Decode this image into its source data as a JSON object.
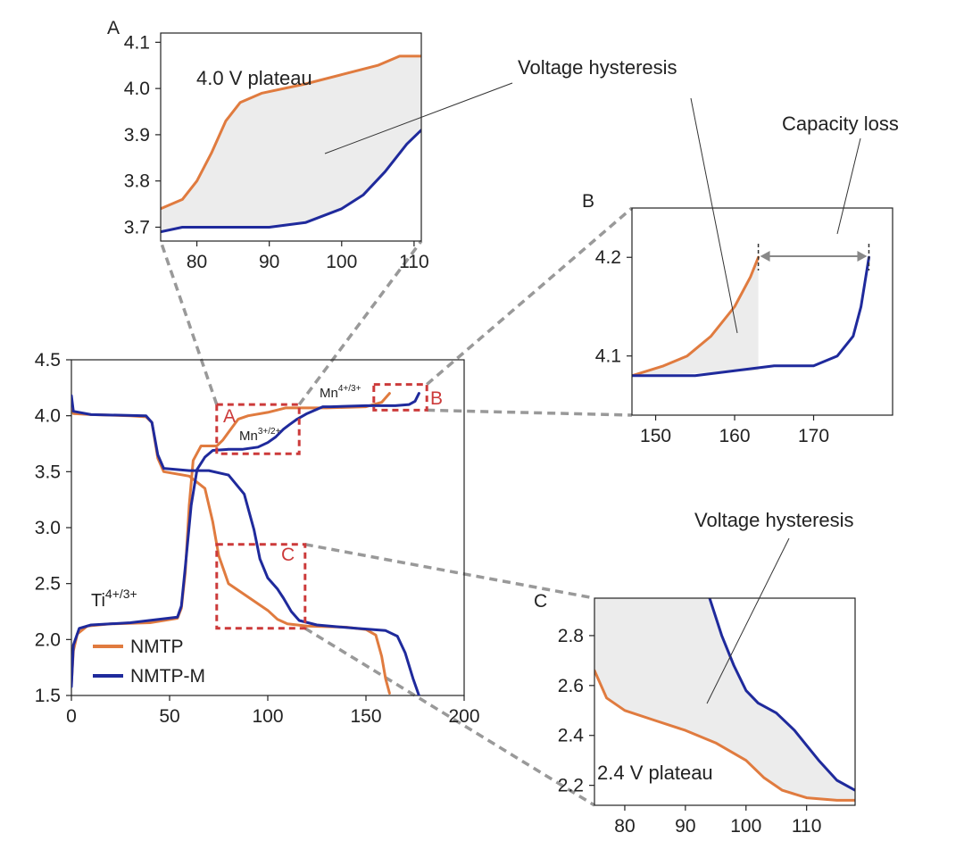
{
  "colors": {
    "nmtp": "#e07b3f",
    "nmtp_m": "#1f2a9c",
    "box": "#cc3a3a",
    "zoom_line": "#999999",
    "fill": "#ececec",
    "arrow": "#888888"
  },
  "chart_data": [
    {
      "id": "main",
      "type": "line",
      "xlim": [
        0,
        200
      ],
      "ylim": [
        1.5,
        4.5
      ],
      "x_ticks": [
        "0",
        "50",
        "100",
        "150",
        "200"
      ],
      "y_ticks": [
        "4.5",
        "4.0",
        "3.5",
        "3.0",
        "2.5",
        "2.0",
        "1.5"
      ],
      "legend": {
        "position": "bottom-left",
        "entries": [
          "NMTP",
          "NMTP-M"
        ]
      },
      "annotations": {
        "ti": "Ti",
        "ti_sup": "4+/3+",
        "mn1": "Mn",
        "mn1_sup": "3+/2+",
        "mn2": "Mn",
        "mn2_sup": "4+/3+"
      },
      "zoom_boxes": [
        {
          "label": "A",
          "x": [
            74,
            116
          ],
          "y": [
            3.66,
            4.1
          ]
        },
        {
          "label": "B",
          "x": [
            154,
            181
          ],
          "y": [
            4.05,
            4.28
          ]
        },
        {
          "label": "C",
          "x": [
            74,
            119
          ],
          "y": [
            2.1,
            2.85
          ]
        }
      ],
      "series": [
        {
          "name": "NMTP",
          "role": "discharge",
          "points": [
            [
              0,
              4.15
            ],
            [
              1,
              4.02
            ],
            [
              10,
              4.01
            ],
            [
              30,
              4.0
            ],
            [
              38,
              3.99
            ],
            [
              41,
              3.94
            ],
            [
              44,
              3.62
            ],
            [
              47,
              3.5
            ],
            [
              60,
              3.46
            ],
            [
              68,
              3.35
            ],
            [
              72,
              3.05
            ],
            [
              75,
              2.75
            ],
            [
              80,
              2.5
            ],
            [
              90,
              2.38
            ],
            [
              100,
              2.26
            ],
            [
              105,
              2.18
            ],
            [
              110,
              2.14
            ],
            [
              120,
              2.12
            ],
            [
              140,
              2.11
            ],
            [
              150,
              2.09
            ],
            [
              155,
              2.04
            ],
            [
              158,
              1.85
            ],
            [
              160,
              1.65
            ],
            [
              162,
              1.52
            ]
          ]
        },
        {
          "name": "NMTP",
          "role": "charge",
          "points": [
            [
              0,
              1.6
            ],
            [
              1,
              1.9
            ],
            [
              3,
              2.05
            ],
            [
              8,
              2.12
            ],
            [
              20,
              2.14
            ],
            [
              40,
              2.15
            ],
            [
              54,
              2.19
            ],
            [
              56,
              2.28
            ],
            [
              58,
              2.6
            ],
            [
              60,
              3.2
            ],
            [
              62,
              3.6
            ],
            [
              66,
              3.73
            ],
            [
              74,
              3.73
            ],
            [
              77,
              3.78
            ],
            [
              82,
              3.9
            ],
            [
              85,
              3.97
            ],
            [
              90,
              4.0
            ],
            [
              100,
              4.03
            ],
            [
              109,
              4.07
            ],
            [
              130,
              4.07
            ],
            [
              150,
              4.08
            ],
            [
              158,
              4.12
            ],
            [
              162,
              4.2
            ]
          ]
        },
        {
          "name": "NMTP-M",
          "role": "discharge",
          "points": [
            [
              0,
              4.18
            ],
            [
              1,
              4.04
            ],
            [
              10,
              4.01
            ],
            [
              38,
              4.0
            ],
            [
              41,
              3.94
            ],
            [
              44,
              3.65
            ],
            [
              47,
              3.53
            ],
            [
              60,
              3.51
            ],
            [
              70,
              3.51
            ],
            [
              80,
              3.47
            ],
            [
              88,
              3.3
            ],
            [
              93,
              2.98
            ],
            [
              96,
              2.72
            ],
            [
              100,
              2.55
            ],
            [
              105,
              2.45
            ],
            [
              108,
              2.37
            ],
            [
              112,
              2.25
            ],
            [
              116,
              2.17
            ],
            [
              125,
              2.13
            ],
            [
              145,
              2.1
            ],
            [
              160,
              2.08
            ],
            [
              166,
              2.03
            ],
            [
              170,
              1.88
            ],
            [
              174,
              1.65
            ],
            [
              177,
              1.5
            ]
          ]
        },
        {
          "name": "NMTP-M",
          "role": "charge",
          "points": [
            [
              0,
              1.58
            ],
            [
              1,
              1.95
            ],
            [
              4,
              2.1
            ],
            [
              10,
              2.13
            ],
            [
              30,
              2.15
            ],
            [
              54,
              2.2
            ],
            [
              56,
              2.3
            ],
            [
              58,
              2.65
            ],
            [
              61,
              3.2
            ],
            [
              64,
              3.52
            ],
            [
              68,
              3.63
            ],
            [
              72,
              3.69
            ],
            [
              80,
              3.7
            ],
            [
              87,
              3.7
            ],
            [
              95,
              3.72
            ],
            [
              100,
              3.76
            ],
            [
              104,
              3.81
            ],
            [
              108,
              3.88
            ],
            [
              111,
              3.92
            ],
            [
              115,
              3.97
            ],
            [
              120,
              4.02
            ],
            [
              128,
              4.08
            ],
            [
              132,
              4.08
            ],
            [
              150,
              4.09
            ],
            [
              165,
              4.09
            ],
            [
              172,
              4.1
            ],
            [
              175,
              4.13
            ],
            [
              177,
              4.2
            ]
          ]
        }
      ]
    },
    {
      "id": "A",
      "type": "line",
      "xlim": [
        75,
        111
      ],
      "ylim": [
        3.67,
        4.12
      ],
      "x_ticks": [
        "80",
        "90",
        "100",
        "110"
      ],
      "y_ticks": [
        "4.1",
        "4.0",
        "3.9",
        "3.8",
        "3.7"
      ],
      "annotation": "4.0 V plateau",
      "series": [
        {
          "name": "NMTP",
          "points": [
            [
              75,
              3.74
            ],
            [
              78,
              3.76
            ],
            [
              80,
              3.8
            ],
            [
              82,
              3.86
            ],
            [
              84,
              3.93
            ],
            [
              86,
              3.97
            ],
            [
              89,
              3.99
            ],
            [
              95,
              4.01
            ],
            [
              100,
              4.03
            ],
            [
              105,
              4.05
            ],
            [
              108,
              4.07
            ],
            [
              111,
              4.07
            ]
          ]
        },
        {
          "name": "NMTP-M",
          "points": [
            [
              75,
              3.69
            ],
            [
              78,
              3.7
            ],
            [
              85,
              3.7
            ],
            [
              90,
              3.7
            ],
            [
              95,
              3.71
            ],
            [
              100,
              3.74
            ],
            [
              103,
              3.77
            ],
            [
              106,
              3.82
            ],
            [
              109,
              3.88
            ],
            [
              111,
              3.91
            ]
          ]
        }
      ]
    },
    {
      "id": "B",
      "type": "line",
      "xlim": [
        147,
        180
      ],
      "ylim": [
        4.04,
        4.25
      ],
      "x_ticks": [
        "150",
        "160",
        "170"
      ],
      "y_ticks": [
        "4.2",
        "4.1"
      ],
      "series": [
        {
          "name": "NMTP",
          "points": [
            [
              147,
              4.08
            ],
            [
              151,
              4.09
            ],
            [
              154,
              4.1
            ],
            [
              157,
              4.12
            ],
            [
              160,
              4.15
            ],
            [
              162,
              4.18
            ],
            [
              163,
              4.2
            ]
          ]
        },
        {
          "name": "NMTP-M",
          "points": [
            [
              147,
              4.08
            ],
            [
              155,
              4.08
            ],
            [
              165,
              4.09
            ],
            [
              170,
              4.09
            ],
            [
              173,
              4.1
            ],
            [
              175,
              4.12
            ],
            [
              176,
              4.15
            ],
            [
              177,
              4.2
            ]
          ]
        }
      ]
    },
    {
      "id": "C",
      "type": "line",
      "xlim": [
        75,
        118
      ],
      "ylim": [
        2.12,
        2.95
      ],
      "x_ticks": [
        "80",
        "90",
        "100",
        "110"
      ],
      "y_ticks": [
        "2.8",
        "2.6",
        "2.4",
        "2.2"
      ],
      "annotation": "2.4 V plateau",
      "series": [
        {
          "name": "NMTP",
          "points": [
            [
              75,
              2.66
            ],
            [
              77,
              2.55
            ],
            [
              80,
              2.5
            ],
            [
              85,
              2.46
            ],
            [
              90,
              2.42
            ],
            [
              95,
              2.37
            ],
            [
              100,
              2.3
            ],
            [
              103,
              2.23
            ],
            [
              106,
              2.18
            ],
            [
              110,
              2.15
            ],
            [
              115,
              2.14
            ],
            [
              118,
              2.14
            ]
          ]
        },
        {
          "name": "NMTP-M",
          "points": [
            [
              94,
              2.95
            ],
            [
              96,
              2.8
            ],
            [
              98,
              2.68
            ],
            [
              100,
              2.58
            ],
            [
              102,
              2.53
            ],
            [
              105,
              2.49
            ],
            [
              108,
              2.42
            ],
            [
              110,
              2.36
            ],
            [
              112,
              2.3
            ],
            [
              115,
              2.22
            ],
            [
              118,
              2.18
            ]
          ]
        }
      ]
    }
  ],
  "labels": {
    "panel_a": "A",
    "panel_b": "B",
    "panel_c": "C",
    "box_a": "A",
    "box_b": "B",
    "box_c": "C",
    "hysteresis_top": "Voltage hysteresis",
    "capacity_loss": "Capacity loss",
    "hysteresis_bottom": "Voltage hysteresis",
    "plateau_a": "4.0 V plateau",
    "plateau_c": "2.4 V plateau",
    "legend_nmtp": "NMTP",
    "legend_nmtp_m": "NMTP-M"
  }
}
